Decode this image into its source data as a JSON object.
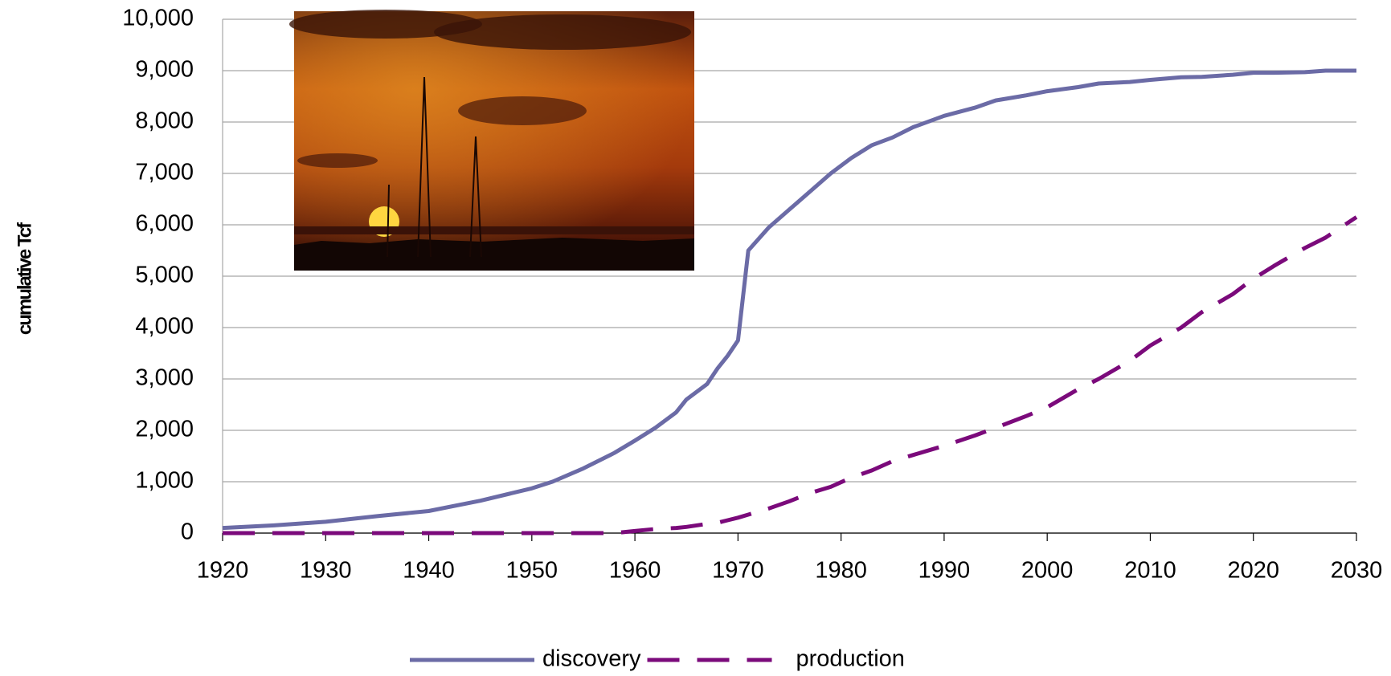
{
  "chart_data": {
    "type": "line",
    "y_label": "cumulative Tcf",
    "x": [
      1920,
      1925,
      1930,
      1935,
      1940,
      1945,
      1950,
      1952,
      1955,
      1958,
      1960,
      1962,
      1964,
      1965,
      1967,
      1968,
      1969,
      1970,
      1971,
      1973,
      1975,
      1977,
      1979,
      1981,
      1983,
      1985,
      1987,
      1990,
      1993,
      1995,
      1998,
      2000,
      2003,
      2005,
      2008,
      2010,
      2013,
      2015,
      2018,
      2020,
      2022,
      2025,
      2027,
      2030
    ],
    "series": [
      {
        "name": "discovery",
        "color": "#6b6ba6",
        "dashed": false,
        "values": [
          100,
          150,
          220,
          330,
          430,
          630,
          870,
          1000,
          1260,
          1560,
          1800,
          2050,
          2350,
          2600,
          2900,
          3200,
          3450,
          3750,
          5500,
          5950,
          6300,
          6650,
          7000,
          7300,
          7550,
          7700,
          7900,
          8120,
          8280,
          8420,
          8520,
          8600,
          8680,
          8750,
          8780,
          8820,
          8870,
          8880,
          8920,
          8960,
          8960,
          8970,
          9000,
          9000
        ]
      },
      {
        "name": "production",
        "color": "#7b0a7b",
        "dashed": true,
        "values": [
          0,
          0,
          0,
          0,
          0,
          0,
          0,
          0,
          0,
          0,
          40,
          80,
          100,
          120,
          180,
          200,
          250,
          300,
          360,
          480,
          620,
          780,
          900,
          1080,
          1220,
          1400,
          1520,
          1700,
          1900,
          2050,
          2280,
          2450,
          2800,
          3000,
          3350,
          3650,
          4000,
          4300,
          4650,
          4950,
          5200,
          5550,
          5750,
          6150
        ]
      }
    ],
    "xlim": [
      1920,
      2030
    ],
    "xticks": [
      1920,
      1930,
      1940,
      1950,
      1960,
      1970,
      1980,
      1990,
      2000,
      2010,
      2020,
      2030
    ],
    "ylim": [
      0,
      10000
    ],
    "yticks": [
      0,
      {
        "value": 1000,
        "label": "1,000"
      },
      {
        "value": 2000,
        "label": "2,000"
      },
      {
        "value": 3000,
        "label": "3,000"
      },
      {
        "value": 4000,
        "label": "4,000"
      },
      {
        "value": 5000,
        "label": "5,000"
      },
      {
        "value": 6000,
        "label": "6,000"
      },
      {
        "value": 7000,
        "label": "7,000"
      },
      {
        "value": 8000,
        "label": "8,000"
      },
      {
        "value": 9000,
        "label": "9,000"
      },
      {
        "value": 10000,
        "label": "10,000"
      }
    ],
    "grid": true,
    "legend": "bottom"
  }
}
